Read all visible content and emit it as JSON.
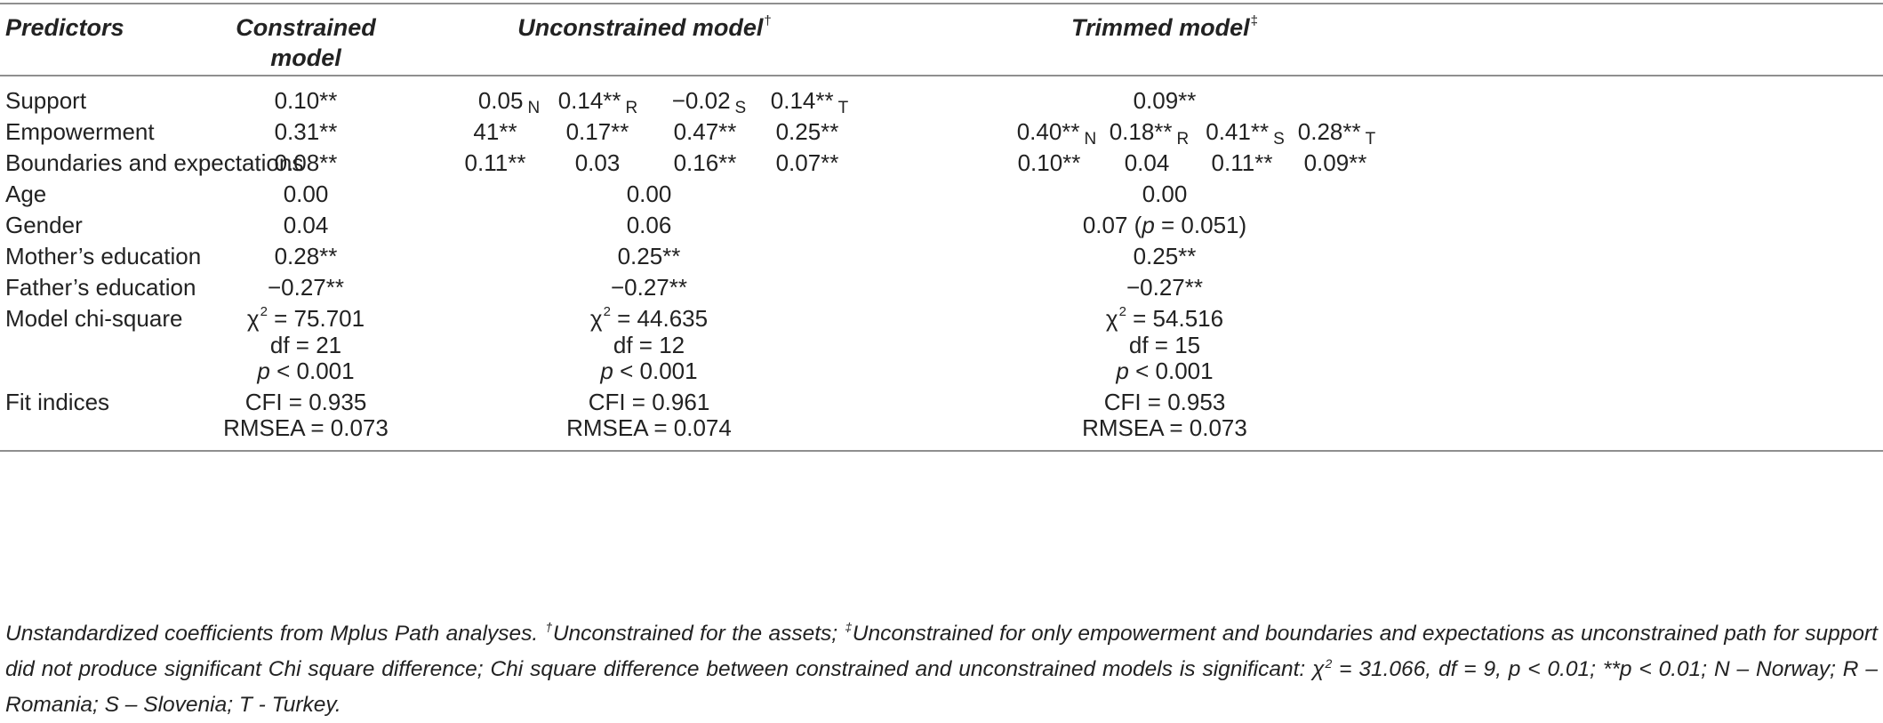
{
  "headers": {
    "predictors": "Predictors",
    "constrained_l1": "Constrained",
    "constrained_l2": "model",
    "unconstrained": "Unconstrained model",
    "unconstrained_mark": "†",
    "trimmed": "Trimmed model",
    "trimmed_mark": "‡"
  },
  "rows": {
    "support": {
      "label": "Support",
      "constrained": "0.10**",
      "unconstrained": [
        {
          "value": "0.05",
          "country": "N"
        },
        {
          "value": "0.14**",
          "country": "R"
        },
        {
          "value": "−0.02",
          "country": "S"
        },
        {
          "value": "0.14**",
          "country": "T"
        }
      ],
      "trimmed": "0.09**"
    },
    "empowerment": {
      "label": "Empowerment",
      "constrained": "0.31**",
      "unconstrained": [
        "41**",
        "0.17**",
        "0.47**",
        "0.25**"
      ],
      "trimmed": [
        {
          "value": "0.40**",
          "country": "N"
        },
        {
          "value": "0.18**",
          "country": "R"
        },
        {
          "value": "0.41**",
          "country": "S"
        },
        {
          "value": "0.28**",
          "country": "T"
        }
      ]
    },
    "boundaries": {
      "label": "Boundaries and expectations",
      "constrained": "0.08**",
      "unconstrained": [
        "0.11**",
        "0.03",
        "0.16**",
        "0.07**"
      ],
      "trimmed": [
        "0.10**",
        "0.04",
        "0.11**",
        "0.09**"
      ]
    },
    "age": {
      "label": "Age",
      "constrained": "0.00",
      "unconstrained": "0.00",
      "trimmed": "0.00"
    },
    "gender": {
      "label": "Gender",
      "constrained": "0.04",
      "unconstrained": "0.06",
      "trimmed_pre": "0.07 (",
      "trimmed_p": "p",
      "trimmed_post": " = 0.051)"
    },
    "mother": {
      "label": "Mother’s education",
      "constrained": "0.28**",
      "unconstrained": "0.25**",
      "trimmed": "0.25**"
    },
    "father": {
      "label": "Father’s education",
      "constrained": "−0.27**",
      "unconstrained": "−0.27**",
      "trimmed": "−0.27**"
    },
    "chi": {
      "label": "Model chi-square",
      "symbol": "χ",
      "exp": "2",
      "p_symbol": "p",
      "constrained": {
        "chi": "= 75.701",
        "df": "df = 21",
        "p": "< 0.001"
      },
      "unconstrained": {
        "chi": "=  44.635",
        "df": "df = 12",
        "p": "< 0.001"
      },
      "trimmed": {
        "chi": "=  54.516",
        "df": "df = 15",
        "p": "< 0.001"
      }
    },
    "fit": {
      "label": "Fit indices",
      "constrained": {
        "cfi": "CFI = 0.935",
        "rmsea": "RMSEA = 0.073"
      },
      "unconstrained": {
        "cfi": "CFI = 0.961",
        "rmsea": "RMSEA = 0.074"
      },
      "trimmed": {
        "cfi": "CFI = 0.953",
        "rmsea": "RMSEA = 0.073"
      }
    }
  },
  "note": {
    "p1": "Unstandardized coefficients from Mplus Path analyses. ",
    "dagger": "†",
    "p2": "Unconstrained for the assets; ",
    "ddagger": "‡",
    "p3": "Unconstrained for only empowerment and boundaries and expectations as unconstrained path for support did not produce significant Chi square difference; Chi square difference between constrained and unconstrained models is significant: ",
    "chi": "χ",
    "exp": "2",
    "p4": " = 31.066, df = 9, p < 0.01; **p < 0.01; N – Norway; R – Romania; S – Slovenia; T - Turkey."
  }
}
